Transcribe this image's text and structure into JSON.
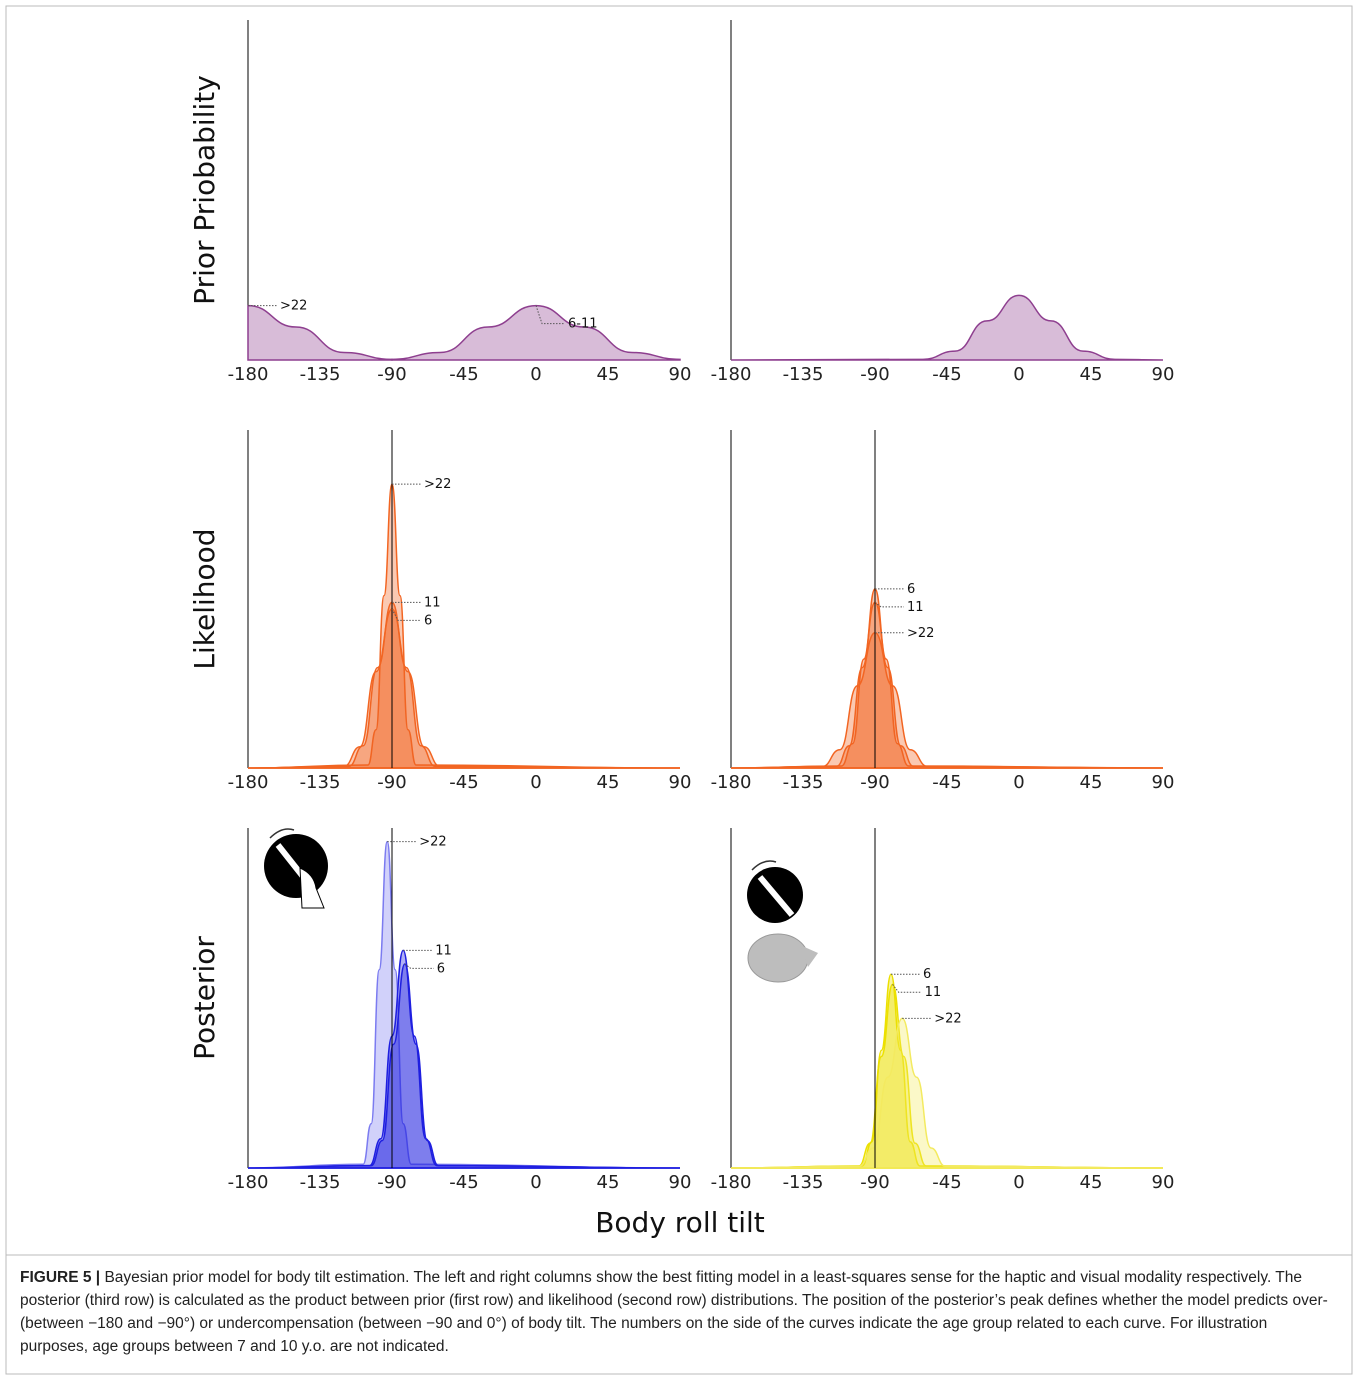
{
  "figure": {
    "xlabel": "Body roll tilt",
    "caption_label": "FIGURE 5 |",
    "caption": "Bayesian prior model for body tilt estimation. The left and right columns show the best fitting model in a least-squares sense for the haptic and visual modality respectively. The posterior (third row) is calculated as the product between prior (first row) and likelihood (second row) distributions. The position of the posterior’s peak defines whether the model predicts over- (between −180 and −90°) or undercompensation (between −90 and 0°) of body tilt. The numbers on the side of the curves indicate the age group related to each curve. For illustration purposes, age groups between 7 and 10 y.o. are not indicated."
  },
  "chart_data": [
    {
      "type": "area",
      "ylabel": "Prior Priobability",
      "xlim": [
        -180,
        90
      ],
      "ylim": [
        0,
        1
      ],
      "xticks": [
        -180,
        -135,
        -90,
        -45,
        0,
        45,
        90
      ],
      "series": [
        {
          "name": ">22",
          "color": "#8e3f8f",
          "x": [
            -180,
            -150,
            -120,
            -90
          ],
          "values": [
            0.16,
            0.097,
            0.022,
            0.002
          ]
        },
        {
          "name": "6-11",
          "color": "#8e3f8f",
          "x": [
            -90,
            -60,
            -30,
            0,
            30,
            60,
            90
          ],
          "values": [
            0.002,
            0.022,
            0.097,
            0.16,
            0.097,
            0.022,
            0.002
          ]
        }
      ]
    },
    {
      "type": "area",
      "xlim": [
        -180,
        90
      ],
      "ylim": [
        0,
        1
      ],
      "xticks": [
        -180,
        -135,
        -90,
        -45,
        0,
        45,
        90
      ],
      "series": [
        {
          "color": "#8e3f8f",
          "x": [
            -180,
            -60,
            -40,
            -20,
            0,
            20,
            40,
            60,
            90
          ],
          "values": [
            0,
            0.002,
            0.026,
            0.115,
            0.19,
            0.115,
            0.026,
            0.002,
            0
          ]
        }
      ]
    },
    {
      "type": "area",
      "ylabel": "Likelihood",
      "xlim": [
        -180,
        90
      ],
      "ylim": [
        0,
        1
      ],
      "xticks": [
        -180,
        -135,
        -90,
        -45,
        0,
        45,
        90
      ],
      "vline": -90,
      "series": [
        {
          "name": ">22",
          "color": "#f26522",
          "x": [
            -180,
            -105,
            -100,
            -95,
            -90,
            -85,
            -80,
            -75,
            90
          ],
          "values": [
            0,
            0.009,
            0.113,
            0.51,
            0.84,
            0.51,
            0.113,
            0.009,
            0
          ]
        },
        {
          "name": "11",
          "color": "#f26522",
          "x": [
            -180,
            -117,
            -108,
            -99,
            -90,
            -81,
            -72,
            -63,
            90
          ],
          "values": [
            0,
            0.005,
            0.066,
            0.297,
            0.49,
            0.297,
            0.066,
            0.005,
            0
          ]
        },
        {
          "name": "6",
          "color": "#f26522",
          "x": [
            -180,
            -120,
            -110,
            -100,
            -90,
            -80,
            -70,
            -60,
            90
          ],
          "values": [
            0,
            0.005,
            0.063,
            0.285,
            0.47,
            0.285,
            0.063,
            0.005,
            0
          ]
        }
      ]
    },
    {
      "type": "area",
      "xlim": [
        -180,
        90
      ],
      "ylim": [
        0,
        1
      ],
      "xticks": [
        -180,
        -135,
        -90,
        -45,
        0,
        45,
        90
      ],
      "vline": -90,
      "series": [
        {
          "name": "6",
          "color": "#f26522",
          "x": [
            -180,
            -111,
            -104,
            -97,
            -90,
            -83,
            -76,
            -69,
            90
          ],
          "values": [
            0,
            0.006,
            0.072,
            0.322,
            0.53,
            0.322,
            0.072,
            0.006,
            0
          ]
        },
        {
          "name": "11",
          "color": "#f26522",
          "x": [
            -180,
            -114,
            -106,
            -98,
            -90,
            -82,
            -74,
            -66,
            90
          ],
          "values": [
            0,
            0.005,
            0.066,
            0.297,
            0.49,
            0.297,
            0.066,
            0.005,
            0
          ]
        },
        {
          "name": ">22",
          "color": "#f26522",
          "x": [
            -180,
            -123,
            -112,
            -101,
            -90,
            -79,
            -68,
            -57,
            90
          ],
          "values": [
            0,
            0.004,
            0.054,
            0.243,
            0.4,
            0.243,
            0.054,
            0.004,
            0
          ]
        }
      ]
    },
    {
      "type": "area",
      "ylabel": "Posterior",
      "xlim": [
        -180,
        90
      ],
      "ylim": [
        0,
        1
      ],
      "xticks": [
        -180,
        -135,
        -90,
        -45,
        0,
        45,
        90
      ],
      "vline": -90,
      "series": [
        {
          "name": ">22",
          "color": "#7b7bf0",
          "x": [
            -180,
            -108,
            -103,
            -98,
            -93,
            -88,
            -83,
            -78,
            90
          ],
          "values": [
            0,
            0.011,
            0.13,
            0.583,
            0.96,
            0.583,
            0.13,
            0.011,
            0
          ]
        },
        {
          "name": "11",
          "color": "#1f1fe0",
          "x": [
            -180,
            -104,
            -97,
            -90,
            -83,
            -76,
            -69,
            -62,
            90
          ],
          "values": [
            0,
            0.007,
            0.086,
            0.388,
            0.64,
            0.388,
            0.086,
            0.007,
            0
          ]
        },
        {
          "name": "6",
          "color": "#1f1fe0",
          "x": [
            -180,
            -103,
            -96,
            -89,
            -82,
            -75,
            -68,
            -61,
            90
          ],
          "values": [
            0,
            0.007,
            0.081,
            0.364,
            0.6,
            0.364,
            0.081,
            0.007,
            0
          ]
        }
      ]
    },
    {
      "type": "area",
      "xlim": [
        -180,
        90
      ],
      "ylim": [
        0,
        1
      ],
      "xticks": [
        -180,
        -135,
        -90,
        -45,
        0,
        45,
        90
      ],
      "vline": -90,
      "series": [
        {
          "name": "6",
          "color": "#ece000",
          "x": [
            -180,
            -98,
            -92,
            -86,
            -80,
            -74,
            -68,
            -62,
            90
          ],
          "values": [
            0,
            0.006,
            0.077,
            0.346,
            0.57,
            0.346,
            0.077,
            0.006,
            0
          ]
        },
        {
          "name": "11",
          "color": "#ece000",
          "x": [
            -180,
            -100,
            -93,
            -86,
            -79,
            -72,
            -65,
            -58,
            90
          ],
          "values": [
            0,
            0.006,
            0.073,
            0.328,
            0.54,
            0.328,
            0.073,
            0.006,
            0
          ]
        },
        {
          "name": ">22",
          "color": "#f3ea60",
          "x": [
            -180,
            -100,
            -91,
            -82,
            -73,
            -64,
            -55,
            -46,
            90
          ],
          "values": [
            0,
            0.005,
            0.059,
            0.267,
            0.44,
            0.267,
            0.059,
            0.005,
            0
          ]
        }
      ]
    }
  ]
}
